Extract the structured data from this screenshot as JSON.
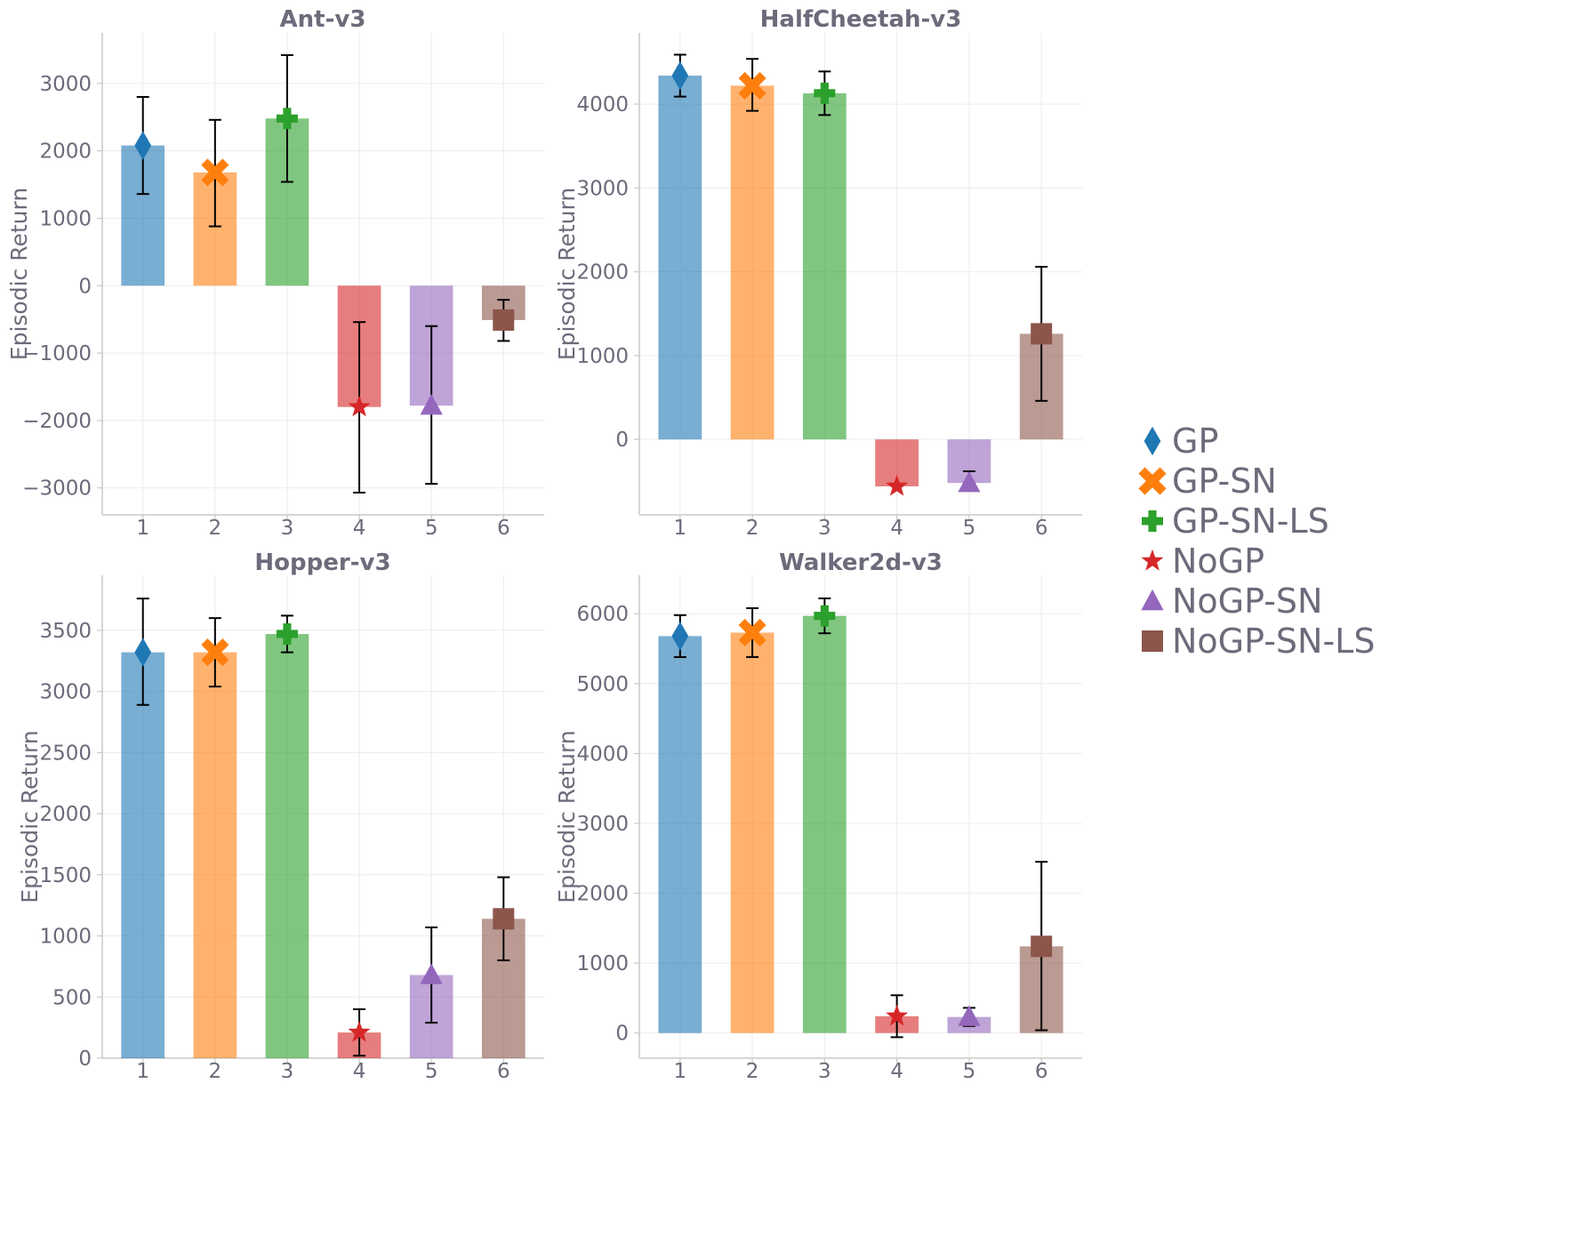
{
  "chart_data": [
    {
      "type": "bar",
      "title": "Ant-v3",
      "ylabel": "Episodic Return",
      "xlabel": "",
      "categories": [
        "1",
        "2",
        "3",
        "4",
        "5",
        "6"
      ],
      "series_names": [
        "GP",
        "GP-SN",
        "GP-SN-LS",
        "NoGP",
        "NoGP-SN",
        "NoGP-SN-LS"
      ],
      "values": [
        2080,
        1680,
        2480,
        -1800,
        -1780,
        -510
      ],
      "error_low": [
        1360,
        880,
        1540,
        -3070,
        -2940,
        -820
      ],
      "error_high": [
        2800,
        2460,
        3420,
        -540,
        -600,
        -210
      ],
      "ylim": [
        -3400,
        3750
      ],
      "yticks": [
        -3000,
        -2000,
        -1000,
        0,
        1000,
        2000,
        3000
      ],
      "ytick_labels": [
        "−3000",
        "−2000",
        "−1000",
        "0",
        "1000",
        "2000",
        "3000"
      ],
      "grid": true
    },
    {
      "type": "bar",
      "title": "HalfCheetah-v3",
      "ylabel": "Episodic Return",
      "xlabel": "",
      "categories": [
        "1",
        "2",
        "3",
        "4",
        "5",
        "6"
      ],
      "series_names": [
        "GP",
        "GP-SN",
        "GP-SN-LS",
        "NoGP",
        "NoGP-SN",
        "NoGP-SN-LS"
      ],
      "values": [
        4340,
        4220,
        4130,
        -560,
        -520,
        1260
      ],
      "error_low": [
        4090,
        3920,
        3870,
        -560,
        -520,
        460
      ],
      "error_high": [
        4590,
        4540,
        4390,
        -560,
        -380,
        2060
      ],
      "ylim": [
        -900,
        4850
      ],
      "yticks": [
        0,
        1000,
        2000,
        3000,
        4000
      ],
      "ytick_labels": [
        "0",
        "1000",
        "2000",
        "3000",
        "4000"
      ],
      "grid": true
    },
    {
      "type": "bar",
      "title": "Hopper-v3",
      "ylabel": "Episodic Return",
      "xlabel": "",
      "categories": [
        "1",
        "2",
        "3",
        "4",
        "5",
        "6"
      ],
      "series_names": [
        "GP",
        "GP-SN",
        "GP-SN-LS",
        "NoGP",
        "NoGP-SN",
        "NoGP-SN-LS"
      ],
      "values": [
        3320,
        3320,
        3470,
        210,
        680,
        1140
      ],
      "error_low": [
        2890,
        3040,
        3320,
        20,
        290,
        800
      ],
      "error_high": [
        3760,
        3600,
        3620,
        400,
        1070,
        1480
      ],
      "ylim": [
        0,
        3950
      ],
      "yticks": [
        0,
        500,
        1000,
        1500,
        2000,
        2500,
        3000,
        3500
      ],
      "ytick_labels": [
        "0",
        "500",
        "1000",
        "1500",
        "2000",
        "2500",
        "3000",
        "3500"
      ],
      "grid": true
    },
    {
      "type": "bar",
      "title": "Walker2d-v3",
      "ylabel": "Episodic Return",
      "xlabel": "",
      "categories": [
        "1",
        "2",
        "3",
        "4",
        "5",
        "6"
      ],
      "series_names": [
        "GP",
        "GP-SN",
        "GP-SN-LS",
        "NoGP",
        "NoGP-SN",
        "NoGP-SN-LS"
      ],
      "values": [
        5680,
        5730,
        5970,
        240,
        230,
        1240
      ],
      "error_low": [
        5380,
        5380,
        5720,
        -60,
        100,
        40
      ],
      "error_high": [
        5980,
        6080,
        6220,
        540,
        360,
        2450
      ],
      "ylim": [
        -360,
        6550
      ],
      "yticks": [
        0,
        1000,
        2000,
        3000,
        4000,
        5000,
        6000
      ],
      "ytick_labels": [
        "0",
        "1000",
        "2000",
        "3000",
        "4000",
        "5000",
        "6000"
      ],
      "grid": true
    }
  ],
  "legend": {
    "placement": "right",
    "items": [
      {
        "label": "GP",
        "color": "#1f77b4",
        "marker": "diamond"
      },
      {
        "label": "GP-SN",
        "color": "#ff7f0e",
        "marker": "x"
      },
      {
        "label": "GP-SN-LS",
        "color": "#2ca02c",
        "marker": "plus"
      },
      {
        "label": "NoGP",
        "color": "#d62728",
        "marker": "star"
      },
      {
        "label": "NoGP-SN",
        "color": "#9467bd",
        "marker": "triangle"
      },
      {
        "label": "NoGP-SN-LS",
        "color": "#8c564b",
        "marker": "square"
      }
    ]
  }
}
